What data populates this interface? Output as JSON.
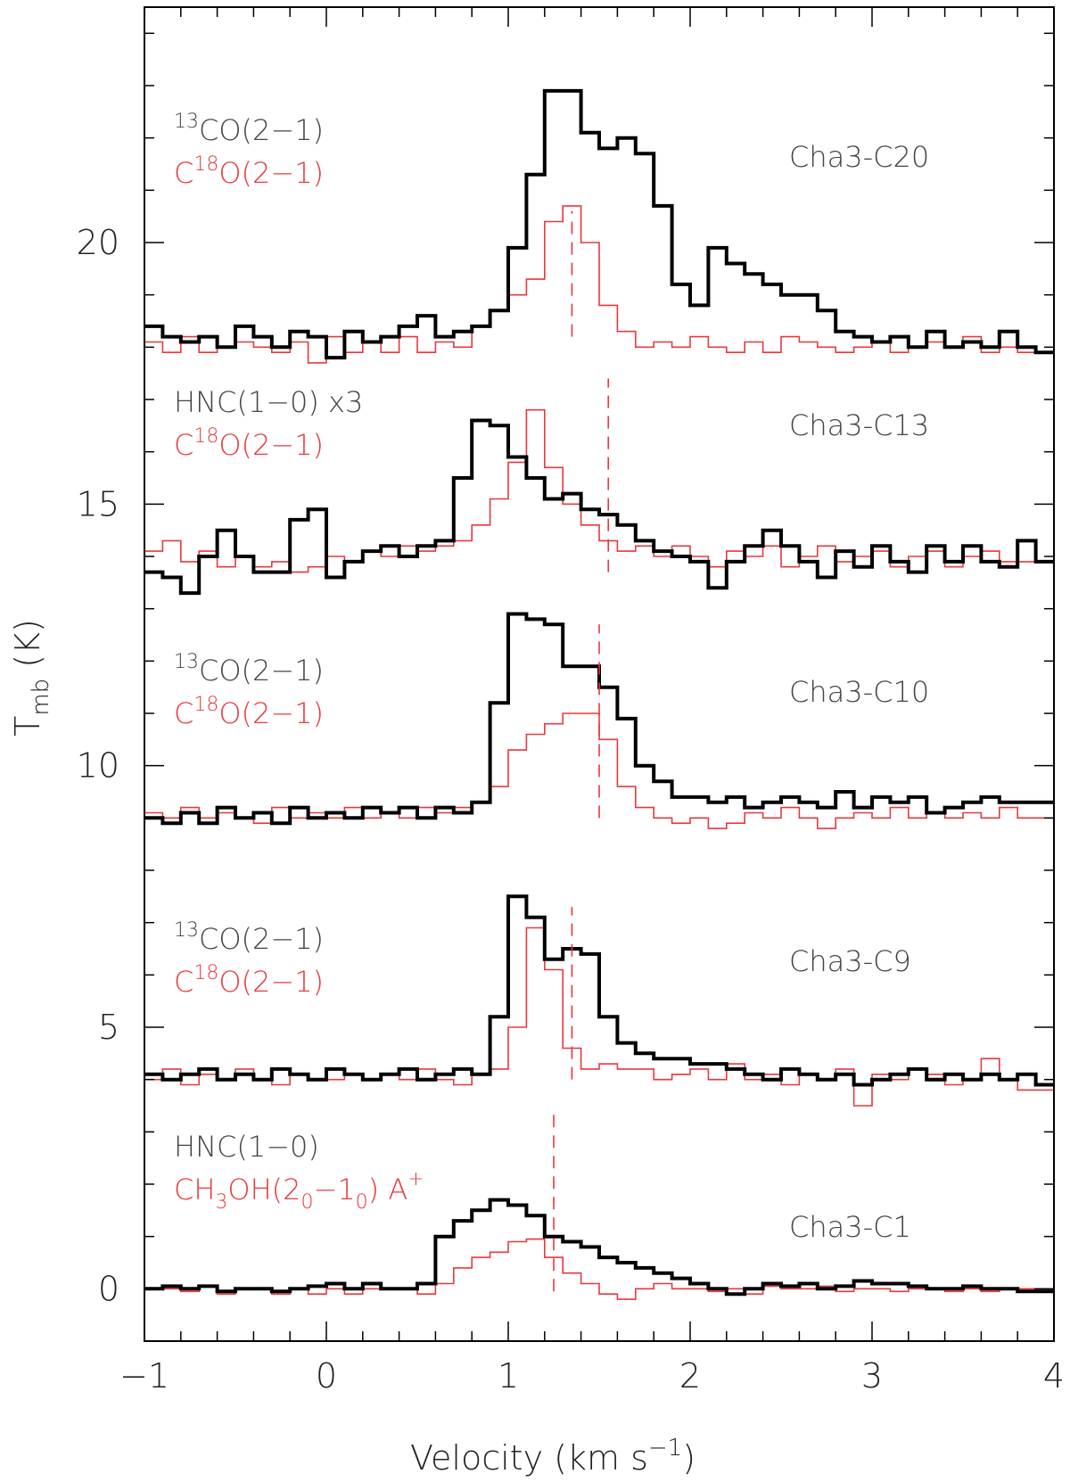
{
  "chart_data": {
    "type": "line",
    "step": true,
    "xlabel": "Velocity (km s",
    "xlabel_exp": "−1",
    "ylabel_main": "T",
    "ylabel_sub": "mb",
    "ylabel_unit": " (K)",
    "xlim": [
      -1,
      4
    ],
    "ylim": [
      -1,
      24.5
    ],
    "x_ticks": [
      {
        "value": -1,
        "label": "−1"
      },
      {
        "value": 0,
        "label": "0"
      },
      {
        "value": 1,
        "label": "1"
      },
      {
        "value": 2,
        "label": "2"
      },
      {
        "value": 3,
        "label": "3"
      },
      {
        "value": 4,
        "label": "4"
      }
    ],
    "y_ticks": [
      {
        "value": 0,
        "label": "0"
      },
      {
        "value": 5,
        "label": "5"
      },
      {
        "value": 10,
        "label": "10"
      },
      {
        "value": 15,
        "label": "15"
      },
      {
        "value": 20,
        "label": "20"
      }
    ],
    "colors": {
      "black": "#000000",
      "red": "#e8383d",
      "dashed": "#e8383d",
      "frame": "#000000"
    },
    "velocities": [
      -1.0,
      -0.9,
      -0.8,
      -0.7,
      -0.6,
      -0.5,
      -0.4,
      -0.3,
      -0.2,
      -0.1,
      0.0,
      0.1,
      0.2,
      0.3,
      0.4,
      0.5,
      0.6,
      0.7,
      0.8,
      0.9,
      1.0,
      1.1,
      1.2,
      1.3,
      1.4,
      1.5,
      1.6,
      1.7,
      1.8,
      1.9,
      2.0,
      2.1,
      2.2,
      2.3,
      2.4,
      2.5,
      2.6,
      2.7,
      2.8,
      2.9,
      3.0,
      3.1,
      3.2,
      3.3,
      3.4,
      3.5,
      3.6,
      3.7,
      3.8,
      3.9
    ],
    "panels": [
      {
        "name": "Cha3-C20",
        "black_label": "CO(2−1)",
        "black_iso": "13",
        "red_label_pre": "C",
        "red_iso": "18",
        "red_label": "O(2−1)",
        "dashed_velocity": 1.35,
        "dashed_range": [
          18.2,
          20.6
        ],
        "black_values": [
          18.4,
          18.2,
          18.1,
          18.2,
          18.0,
          18.4,
          18.2,
          18.0,
          18.3,
          18.2,
          17.8,
          18.3,
          18.1,
          18.2,
          18.4,
          18.6,
          18.2,
          18.3,
          18.4,
          18.7,
          19.9,
          21.3,
          22.9,
          22.9,
          22.1,
          21.8,
          22.0,
          21.7,
          20.7,
          19.2,
          18.8,
          19.9,
          19.6,
          19.4,
          19.2,
          19.0,
          19.0,
          18.7,
          18.3,
          18.2,
          18.1,
          18.2,
          18.0,
          18.3,
          18.0,
          18.1,
          18.0,
          18.3,
          18.0,
          17.9
        ],
        "red_values": [
          18.1,
          17.9,
          18.2,
          17.9,
          18.0,
          18.1,
          18.0,
          17.9,
          18.1,
          17.7,
          18.2,
          17.9,
          18.1,
          17.9,
          18.2,
          17.9,
          18.1,
          18.0,
          18.4,
          18.7,
          19.0,
          19.3,
          20.4,
          20.7,
          20.0,
          18.8,
          18.3,
          18.0,
          18.1,
          18.0,
          18.2,
          18.0,
          17.9,
          18.1,
          17.9,
          18.2,
          18.1,
          18.0,
          17.9,
          18.0,
          18.1,
          17.9,
          18.0,
          18.1,
          18.0,
          18.2,
          17.9,
          18.0,
          17.9,
          17.9
        ]
      },
      {
        "name": "Cha3-C13",
        "black_label": "HNC(1−0) x3",
        "black_iso": "",
        "red_label_pre": "C",
        "red_iso": "18",
        "red_label": "O(2−1)",
        "dashed_velocity": 1.55,
        "dashed_range": [
          13.7,
          17.4
        ],
        "black_values": [
          13.7,
          13.6,
          13.3,
          14.0,
          14.5,
          14.0,
          13.7,
          13.7,
          14.7,
          14.9,
          13.6,
          13.9,
          14.1,
          14.2,
          14.0,
          14.2,
          14.3,
          15.5,
          16.6,
          16.5,
          15.9,
          15.5,
          15.1,
          15.2,
          14.9,
          14.8,
          14.6,
          14.3,
          14.1,
          14.0,
          13.9,
          13.4,
          13.9,
          14.2,
          14.5,
          14.2,
          13.9,
          13.6,
          14.1,
          13.8,
          14.2,
          13.9,
          13.7,
          14.2,
          13.9,
          14.2,
          13.9,
          13.8,
          14.3,
          13.9
        ],
        "red_values": [
          14.1,
          14.3,
          13.9,
          14.1,
          13.8,
          14.0,
          13.8,
          13.9,
          13.7,
          13.8,
          14.0,
          13.9,
          14.1,
          14.0,
          14.2,
          14.1,
          14.2,
          14.3,
          14.6,
          15.1,
          15.8,
          16.8,
          15.7,
          15.0,
          14.6,
          14.3,
          14.1,
          14.2,
          14.0,
          14.2,
          14.0,
          13.8,
          14.1,
          14.0,
          14.2,
          13.8,
          14.0,
          14.2,
          13.9,
          14.0,
          14.1,
          13.8,
          14.0,
          14.1,
          13.8,
          14.0,
          14.1,
          13.9,
          13.9,
          13.9
        ]
      },
      {
        "name": "Cha3-C10",
        "black_label": "CO(2−1)",
        "black_iso": "13",
        "red_label_pre": "C",
        "red_iso": "18",
        "red_label": "O(2−1)",
        "dashed_velocity": 1.5,
        "dashed_range": [
          9.0,
          12.7
        ],
        "black_values": [
          9.0,
          8.9,
          9.1,
          8.9,
          9.2,
          9.0,
          9.1,
          8.9,
          9.2,
          9.0,
          9.1,
          9.0,
          9.2,
          9.1,
          9.2,
          9.0,
          9.2,
          9.1,
          9.3,
          11.2,
          12.9,
          12.8,
          12.7,
          11.9,
          11.9,
          11.5,
          10.9,
          10.0,
          9.7,
          9.4,
          9.4,
          9.3,
          9.4,
          9.2,
          9.3,
          9.4,
          9.3,
          9.2,
          9.5,
          9.2,
          9.4,
          9.3,
          9.4,
          9.1,
          9.2,
          9.3,
          9.4,
          9.3,
          9.3,
          9.3
        ],
        "red_values": [
          9.1,
          9.0,
          9.2,
          9.0,
          9.1,
          9.0,
          8.9,
          9.2,
          9.0,
          9.1,
          9.0,
          9.2,
          9.0,
          9.1,
          9.0,
          9.2,
          9.1,
          9.2,
          9.3,
          9.6,
          10.3,
          10.6,
          10.8,
          11.0,
          11.0,
          10.5,
          9.6,
          9.2,
          9.0,
          8.9,
          9.0,
          8.8,
          8.9,
          9.1,
          9.0,
          9.2,
          9.0,
          8.8,
          9.0,
          9.1,
          9.0,
          9.2,
          9.0,
          9.1,
          9.0,
          9.1,
          9.0,
          9.2,
          9.0,
          9.0
        ]
      },
      {
        "name": "Cha3-C9",
        "black_label": "CO(2−1)",
        "black_iso": "13",
        "red_label_pre": "C",
        "red_iso": "18",
        "red_label": "O(2−1)",
        "dashed_velocity": 1.35,
        "dashed_range": [
          4.0,
          7.3
        ],
        "black_values": [
          4.1,
          4.0,
          4.1,
          4.2,
          4.0,
          4.1,
          4.0,
          4.2,
          4.1,
          4.0,
          4.2,
          4.1,
          4.0,
          4.1,
          4.2,
          4.0,
          4.1,
          4.2,
          4.1,
          5.2,
          7.5,
          7.1,
          6.3,
          6.5,
          6.4,
          5.2,
          4.7,
          4.5,
          4.4,
          4.4,
          4.3,
          4.3,
          4.2,
          4.1,
          4.0,
          4.2,
          4.1,
          4.0,
          4.1,
          3.9,
          4.0,
          4.1,
          4.2,
          4.0,
          4.1,
          4.0,
          4.1,
          4.0,
          4.1,
          3.9
        ],
        "red_values": [
          4.0,
          4.2,
          3.9,
          4.1,
          4.0,
          4.2,
          4.0,
          3.9,
          4.1,
          4.0,
          4.0,
          4.1,
          4.0,
          4.1,
          4.0,
          4.2,
          4.0,
          3.9,
          4.1,
          4.2,
          5.0,
          6.9,
          6.1,
          4.6,
          4.2,
          4.3,
          4.2,
          4.2,
          4.0,
          4.1,
          4.2,
          4.0,
          4.3,
          4.0,
          4.1,
          3.9,
          4.1,
          4.0,
          4.2,
          3.5,
          4.1,
          4.0,
          4.2,
          4.1,
          3.9,
          4.0,
          4.4,
          4.0,
          3.8,
          3.8
        ]
      },
      {
        "name": "Cha3-C1",
        "black_label": "HNC(1−0)",
        "black_iso": "",
        "red_label_pre": "CH",
        "red_sub1": "3",
        "red_mid": "OH(2",
        "red_sub2": "0",
        "red_mid2": "−1",
        "red_sub3": "0",
        "red_end": ") A",
        "red_sup": "+",
        "dashed_velocity": 1.25,
        "dashed_range": [
          -0.05,
          3.4
        ],
        "black_values": [
          0.0,
          0.05,
          0.0,
          0.05,
          -0.05,
          0.0,
          0.0,
          -0.05,
          0.0,
          0.05,
          0.1,
          0.0,
          0.1,
          0.0,
          0.0,
          0.1,
          1.0,
          1.3,
          1.5,
          1.7,
          1.6,
          1.4,
          1.0,
          0.9,
          0.8,
          0.6,
          0.5,
          0.4,
          0.3,
          0.2,
          0.1,
          0.0,
          -0.1,
          0.0,
          0.1,
          0.05,
          0.1,
          0.0,
          0.05,
          0.15,
          0.1,
          0.1,
          0.05,
          0.0,
          0.0,
          0.05,
          0.0,
          0.0,
          -0.05,
          -0.05
        ],
        "red_values": [
          0.0,
          0.0,
          -0.05,
          0.05,
          -0.1,
          0.0,
          0.0,
          -0.1,
          0.0,
          -0.1,
          0.0,
          -0.1,
          0.0,
          0.0,
          0.0,
          -0.1,
          0.1,
          0.4,
          0.6,
          0.7,
          0.9,
          0.95,
          0.6,
          0.3,
          0.1,
          -0.1,
          -0.2,
          0.0,
          0.1,
          0.0,
          0.0,
          -0.05,
          0.0,
          -0.1,
          0.05,
          0.0,
          0.0,
          0.05,
          -0.05,
          0.0,
          0.0,
          -0.05,
          0.0,
          0.0,
          -0.05,
          0.0,
          -0.05,
          0.0,
          0.0,
          0.0
        ]
      }
    ]
  }
}
